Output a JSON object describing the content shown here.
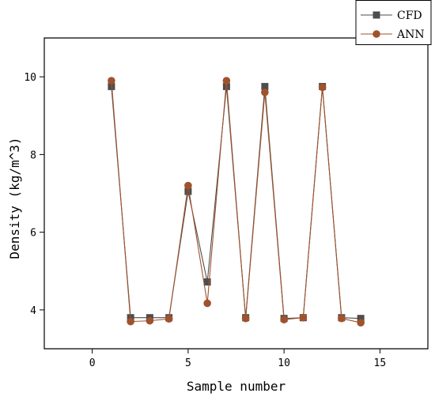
{
  "chart_data": {
    "type": "line",
    "xlabel": "Sample number",
    "ylabel": "Density (kg/m^3)",
    "xlim": [
      -2.5,
      17.5
    ],
    "ylim": [
      3,
      11
    ],
    "xticks": [
      0,
      5,
      10,
      15
    ],
    "yticks": [
      4,
      6,
      8,
      10
    ],
    "legend_position": "top-right",
    "x": [
      1,
      2,
      3,
      4,
      5,
      6,
      7,
      8,
      9,
      10,
      11,
      12,
      13,
      14
    ],
    "series": [
      {
        "name": "CFD",
        "marker": "square",
        "color": "#4d4d4d",
        "values": [
          9.75,
          3.8,
          3.8,
          3.8,
          7.05,
          4.72,
          9.75,
          3.8,
          9.75,
          3.78,
          3.8,
          9.75,
          3.8,
          3.78
        ]
      },
      {
        "name": "ANN",
        "marker": "circle",
        "color": "#a0522d",
        "values": [
          9.9,
          3.7,
          3.72,
          3.77,
          7.2,
          4.17,
          9.9,
          3.78,
          9.6,
          3.75,
          3.8,
          9.73,
          3.78,
          3.67
        ]
      }
    ]
  }
}
